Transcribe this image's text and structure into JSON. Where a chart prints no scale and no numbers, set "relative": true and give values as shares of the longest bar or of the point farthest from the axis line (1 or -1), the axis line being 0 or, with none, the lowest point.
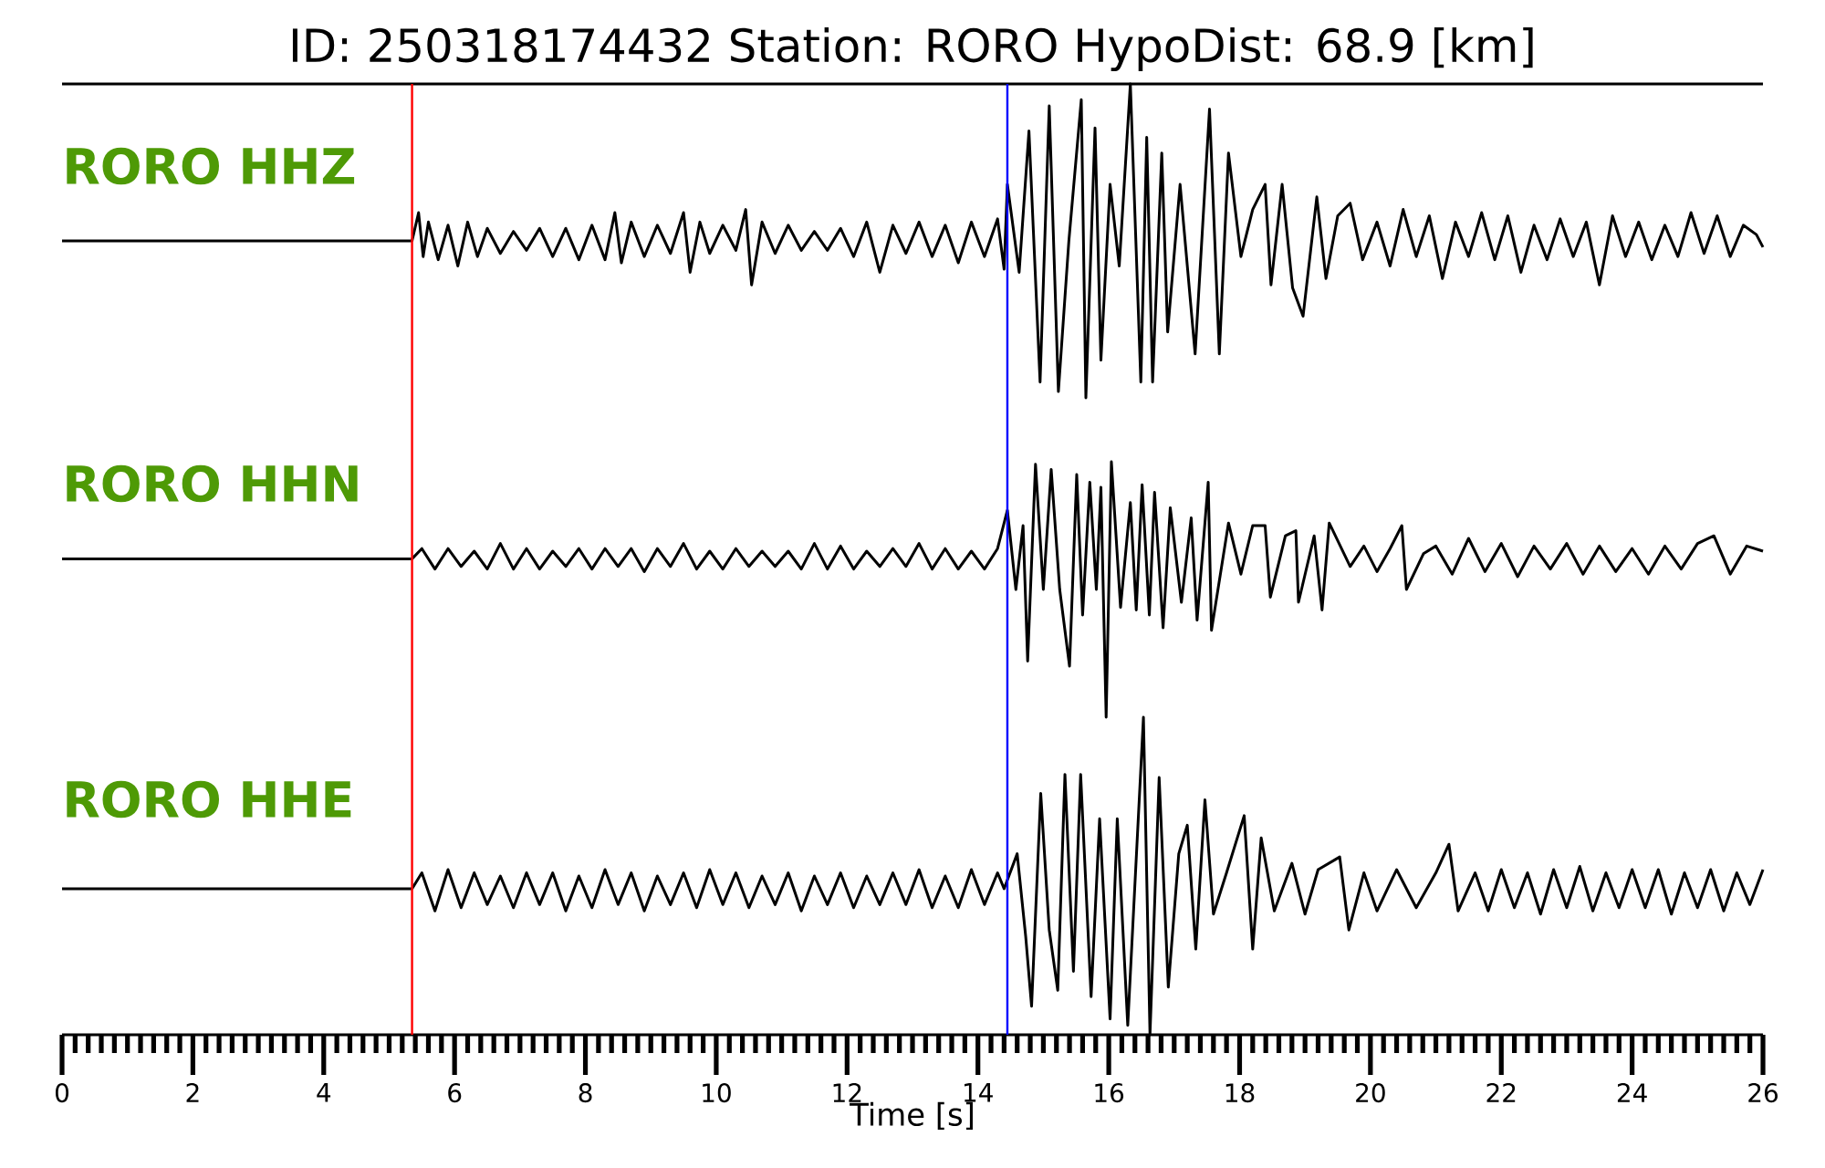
{
  "chart_data": [
    {
      "type": "line",
      "title": "ID: 250318174432   Station: RORO   HypoDist:    68.9 [km]",
      "relative": true,
      "xlim": [
        0,
        26
      ],
      "tick_labels": false,
      "x": [
        0,
        5.35,
        5.45,
        5.52,
        5.6,
        5.75,
        5.9,
        6.05,
        6.2,
        6.35,
        6.5,
        6.7,
        6.9,
        7.1,
        7.3,
        7.5,
        7.7,
        7.9,
        8.1,
        8.3,
        8.45,
        8.55,
        8.7,
        8.9,
        9.1,
        9.3,
        9.5,
        9.6,
        9.75,
        9.9,
        10.1,
        10.3,
        10.45,
        10.54,
        10.7,
        10.9,
        11.1,
        11.3,
        11.5,
        11.7,
        11.9,
        12.1,
        12.3,
        12.5,
        12.7,
        12.9,
        13.1,
        13.3,
        13.5,
        13.7,
        13.9,
        14.1,
        14.3,
        14.4,
        14.45,
        14.63,
        14.78,
        14.95,
        15.09,
        15.23,
        15.39,
        15.58,
        15.65,
        15.79,
        15.88,
        16.02,
        16.16,
        16.33,
        16.49,
        16.58,
        16.67,
        16.81,
        16.9,
        17.09,
        17.32,
        17.54,
        17.69,
        17.83,
        18.02,
        18.2,
        18.39,
        18.48,
        18.65,
        18.81,
        18.97,
        19.18,
        19.32,
        19.5,
        19.69,
        19.88,
        20.1,
        20.3,
        20.5,
        20.7,
        20.9,
        21.1,
        21.3,
        21.5,
        21.7,
        21.9,
        22.1,
        22.3,
        22.5,
        22.7,
        22.9,
        23.1,
        23.3,
        23.5,
        23.7,
        23.9,
        24.1,
        24.3,
        24.5,
        24.7,
        24.9,
        25.1,
        25.3,
        25.5,
        25.7,
        25.9,
        26
      ],
      "series": [
        {
          "name": "RORO HHZ",
          "color": "#000000",
          "values": [
            0.5,
            0.5,
            0.59,
            0.45,
            0.56,
            0.44,
            0.55,
            0.42,
            0.56,
            0.45,
            0.54,
            0.46,
            0.53,
            0.47,
            0.54,
            0.45,
            0.54,
            0.44,
            0.55,
            0.44,
            0.59,
            0.43,
            0.56,
            0.45,
            0.55,
            0.46,
            0.59,
            0.4,
            0.56,
            0.46,
            0.55,
            0.47,
            0.6,
            0.36,
            0.56,
            0.46,
            0.55,
            0.47,
            0.53,
            0.47,
            0.54,
            0.45,
            0.56,
            0.4,
            0.55,
            0.46,
            0.56,
            0.45,
            0.55,
            0.43,
            0.56,
            0.45,
            0.57,
            0.41,
            0.68,
            0.4,
            0.85,
            0.05,
            0.93,
            0.02,
            0.5,
            0.95,
            0,
            0.86,
            0.12,
            0.68,
            0.42,
            1,
            0.05,
            0.83,
            0.05,
            0.78,
            0.21,
            0.68,
            0.14,
            0.92,
            0.14,
            0.78,
            0.45,
            0.6,
            0.68,
            0.36,
            0.68,
            0.35,
            0.26,
            0.64,
            0.38,
            0.58,
            0.62,
            0.44,
            0.56,
            0.42,
            0.6,
            0.45,
            0.58,
            0.38,
            0.56,
            0.45,
            0.59,
            0.44,
            0.58,
            0.4,
            0.55,
            0.44,
            0.57,
            0.45,
            0.56,
            0.36,
            0.58,
            0.45,
            0.56,
            0.44,
            0.55,
            0.45,
            0.59,
            0.46,
            0.58,
            0.45,
            0.55,
            0.52,
            0.48
          ]
        }
      ],
      "ref_lines": [
        {
          "axis": "x",
          "value": 5.35,
          "color": "#ff0000"
        },
        {
          "axis": "x",
          "value": 14.45,
          "color": "#0000ff"
        }
      ]
    },
    {
      "type": "line",
      "relative": true,
      "xlim": [
        0,
        26
      ],
      "tick_labels": false,
      "x": [
        0,
        5.35,
        5.5,
        5.7,
        5.9,
        6.1,
        6.3,
        6.5,
        6.7,
        6.9,
        7.1,
        7.3,
        7.5,
        7.7,
        7.9,
        8.1,
        8.3,
        8.5,
        8.7,
        8.9,
        9.1,
        9.3,
        9.5,
        9.7,
        9.9,
        10.1,
        10.3,
        10.5,
        10.7,
        10.9,
        11.1,
        11.3,
        11.5,
        11.7,
        11.9,
        12.1,
        12.3,
        12.5,
        12.7,
        12.9,
        13.1,
        13.3,
        13.5,
        13.7,
        13.9,
        14.1,
        14.3,
        14.45,
        14.58,
        14.69,
        14.76,
        14.88,
        15.0,
        15.12,
        15.25,
        15.4,
        15.51,
        15.6,
        15.71,
        15.81,
        15.88,
        15.96,
        16.04,
        16.18,
        16.33,
        16.42,
        16.51,
        16.62,
        16.7,
        16.83,
        16.94,
        17.11,
        17.26,
        17.35,
        17.52,
        17.57,
        17.83,
        18.02,
        18.2,
        18.39,
        18.47,
        18.7,
        18.86,
        18.9,
        19.14,
        19.26,
        19.37,
        19.69,
        19.9,
        20.1,
        20.3,
        20.48,
        20.55,
        20.81,
        21.0,
        21.25,
        21.5,
        21.75,
        22.0,
        22.25,
        22.5,
        22.75,
        23.0,
        23.25,
        23.5,
        23.75,
        24.0,
        24.25,
        24.5,
        24.75,
        25.0,
        25.25,
        25.5,
        25.75,
        26.0
      ],
      "series": [
        {
          "name": "RORO HHN",
          "color": "#000000",
          "values": [
            0.62,
            0.62,
            0.66,
            0.58,
            0.66,
            0.59,
            0.65,
            0.58,
            0.68,
            0.58,
            0.66,
            0.58,
            0.65,
            0.59,
            0.66,
            0.58,
            0.66,
            0.59,
            0.66,
            0.57,
            0.66,
            0.59,
            0.68,
            0.58,
            0.65,
            0.58,
            0.66,
            0.59,
            0.65,
            0.59,
            0.65,
            0.58,
            0.68,
            0.58,
            0.67,
            0.58,
            0.65,
            0.59,
            0.66,
            0.59,
            0.68,
            0.58,
            0.66,
            0.58,
            0.65,
            0.58,
            0.66,
            0.81,
            0.5,
            0.75,
            0.22,
            0.99,
            0.5,
            0.97,
            0.5,
            0.2,
            0.95,
            0.4,
            0.92,
            0.5,
            0.9,
            0,
            1,
            0.43,
            0.84,
            0.42,
            0.91,
            0.4,
            0.88,
            0.35,
            0.82,
            0.45,
            0.78,
            0.38,
            0.92,
            0.34,
            0.76,
            0.56,
            0.75,
            0.75,
            0.47,
            0.71,
            0.73,
            0.45,
            0.71,
            0.42,
            0.76,
            0.59,
            0.67,
            0.57,
            0.66,
            0.75,
            0.5,
            0.64,
            0.67,
            0.56,
            0.7,
            0.57,
            0.68,
            0.55,
            0.67,
            0.58,
            0.68,
            0.56,
            0.67,
            0.57,
            0.66,
            0.56,
            0.67,
            0.58,
            0.68,
            0.71,
            0.56,
            0.67,
            0.65
          ]
        }
      ],
      "ref_lines": [
        {
          "axis": "x",
          "value": 5.35,
          "color": "#ff0000"
        },
        {
          "axis": "x",
          "value": 14.45,
          "color": "#0000ff"
        }
      ]
    },
    {
      "type": "line",
      "relative": true,
      "xlim": [
        0,
        26
      ],
      "xticks": [
        0,
        2,
        4,
        6,
        8,
        10,
        12,
        14,
        16,
        18,
        20,
        22,
        24,
        26
      ],
      "xlabel": "Time [s]",
      "tick_labels": "x",
      "x": [
        0,
        5.35,
        5.5,
        5.7,
        5.9,
        6.1,
        6.3,
        6.5,
        6.7,
        6.9,
        7.1,
        7.3,
        7.5,
        7.7,
        7.9,
        8.1,
        8.3,
        8.5,
        8.7,
        8.9,
        9.1,
        9.3,
        9.5,
        9.7,
        9.9,
        10.1,
        10.3,
        10.5,
        10.7,
        10.9,
        11.1,
        11.3,
        11.5,
        11.7,
        11.9,
        12.1,
        12.3,
        12.5,
        12.7,
        12.9,
        13.1,
        13.3,
        13.5,
        13.7,
        13.9,
        14.1,
        14.3,
        14.4,
        14.6,
        14.73,
        14.82,
        14.96,
        15.09,
        15.22,
        15.33,
        15.46,
        15.57,
        15.73,
        15.86,
        16.02,
        16.13,
        16.29,
        16.53,
        16.63,
        16.77,
        16.91,
        17.07,
        17.2,
        17.33,
        17.47,
        17.6,
        17.8,
        18.07,
        18.2,
        18.33,
        18.53,
        18.8,
        19.0,
        19.2,
        19.53,
        19.67,
        19.9,
        20.1,
        20.4,
        20.7,
        21.0,
        21.2,
        21.34,
        21.6,
        21.8,
        22.0,
        22.2,
        22.4,
        22.6,
        22.8,
        23.0,
        23.2,
        23.4,
        23.6,
        23.8,
        24.0,
        24.2,
        24.4,
        24.6,
        24.8,
        25.0,
        25.2,
        25.4,
        25.6,
        25.8,
        26
      ],
      "series": [
        {
          "name": "RORO HHE",
          "color": "#000000",
          "values": [
            0.46,
            0.46,
            0.51,
            0.39,
            0.52,
            0.4,
            0.51,
            0.41,
            0.5,
            0.4,
            0.51,
            0.41,
            0.51,
            0.39,
            0.5,
            0.4,
            0.52,
            0.41,
            0.51,
            0.39,
            0.5,
            0.41,
            0.51,
            0.4,
            0.52,
            0.41,
            0.51,
            0.4,
            0.5,
            0.41,
            0.51,
            0.39,
            0.5,
            0.41,
            0.51,
            0.4,
            0.5,
            0.41,
            0.51,
            0.41,
            0.52,
            0.4,
            0.5,
            0.4,
            0.52,
            0.41,
            0.51,
            0.46,
            0.57,
            0.31,
            0.09,
            0.76,
            0.33,
            0.14,
            0.82,
            0.2,
            0.82,
            0.12,
            0.68,
            0.05,
            0.68,
            0.03,
            1,
            0,
            0.81,
            0.15,
            0.57,
            0.66,
            0.27,
            0.74,
            0.38,
            0.51,
            0.69,
            0.27,
            0.62,
            0.39,
            0.54,
            0.38,
            0.52,
            0.56,
            0.33,
            0.51,
            0.39,
            0.52,
            0.4,
            0.51,
            0.6,
            0.39,
            0.51,
            0.39,
            0.52,
            0.4,
            0.51,
            0.38,
            0.52,
            0.4,
            0.53,
            0.39,
            0.51,
            0.4,
            0.52,
            0.4,
            0.52,
            0.38,
            0.51,
            0.4,
            0.52,
            0.39,
            0.51,
            0.41,
            0.52
          ]
        }
      ],
      "ref_lines": [
        {
          "axis": "x",
          "value": 5.35,
          "color": "#ff0000"
        },
        {
          "axis": "x",
          "value": 14.45,
          "color": "#0000ff"
        }
      ]
    }
  ]
}
